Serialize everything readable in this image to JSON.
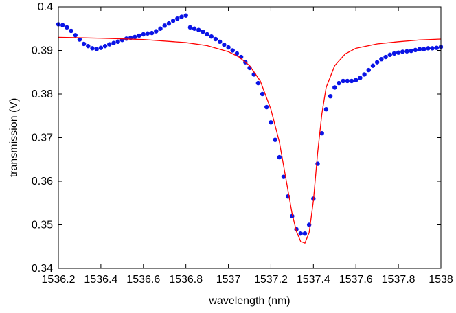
{
  "chart_data": {
    "type": "scatter",
    "title": "",
    "xlabel": "wavelength (nm)",
    "ylabel": "transmission (V)",
    "xlim": [
      1536.2,
      1538
    ],
    "ylim": [
      0.34,
      0.4
    ],
    "xticks": [
      1536.2,
      1536.4,
      1536.6,
      1536.8,
      1537,
      1537.2,
      1537.4,
      1537.6,
      1537.8,
      1538
    ],
    "xtick_labels": [
      "1536.2",
      "1536.4",
      "1536.6",
      "1536.8",
      "1537",
      "1537.2",
      "1537.4",
      "1537.6",
      "1537.8",
      "1538"
    ],
    "yticks": [
      0.34,
      0.35,
      0.36,
      0.37,
      0.38,
      0.39,
      0.4
    ],
    "ytick_labels": [
      "0.34",
      "0.35",
      "0.36",
      "0.37",
      "0.38",
      "0.39",
      "0.4"
    ],
    "grid": false,
    "colors": {
      "data": "#0a14e6",
      "fit": "#ff0000"
    },
    "series": [
      {
        "kind": "scatter",
        "points": [
          [
            1536.2,
            0.396
          ],
          [
            1536.22,
            0.3958
          ],
          [
            1536.24,
            0.3953
          ],
          [
            1536.26,
            0.3945
          ],
          [
            1536.28,
            0.3935
          ],
          [
            1536.3,
            0.3925
          ],
          [
            1536.32,
            0.3915
          ],
          [
            1536.34,
            0.391
          ],
          [
            1536.36,
            0.3905
          ],
          [
            1536.38,
            0.3903
          ],
          [
            1536.4,
            0.3906
          ],
          [
            1536.42,
            0.391
          ],
          [
            1536.44,
            0.3914
          ],
          [
            1536.46,
            0.3917
          ],
          [
            1536.48,
            0.392
          ],
          [
            1536.5,
            0.3924
          ],
          [
            1536.52,
            0.3927
          ],
          [
            1536.54,
            0.3929
          ],
          [
            1536.56,
            0.3931
          ],
          [
            1536.58,
            0.3934
          ],
          [
            1536.6,
            0.3937
          ],
          [
            1536.62,
            0.3939
          ],
          [
            1536.64,
            0.394
          ],
          [
            1536.66,
            0.3944
          ],
          [
            1536.68,
            0.395
          ],
          [
            1536.7,
            0.3957
          ],
          [
            1536.72,
            0.3962
          ],
          [
            1536.74,
            0.3968
          ],
          [
            1536.76,
            0.3973
          ],
          [
            1536.78,
            0.3977
          ],
          [
            1536.8,
            0.398
          ],
          [
            1536.82,
            0.3953
          ],
          [
            1536.84,
            0.395
          ],
          [
            1536.86,
            0.3947
          ],
          [
            1536.88,
            0.3943
          ],
          [
            1536.9,
            0.3937
          ],
          [
            1536.92,
            0.3932
          ],
          [
            1536.94,
            0.3926
          ],
          [
            1536.96,
            0.392
          ],
          [
            1536.98,
            0.3913
          ],
          [
            1537,
            0.3907
          ],
          [
            1537.02,
            0.39
          ],
          [
            1537.04,
            0.3893
          ],
          [
            1537.06,
            0.3885
          ],
          [
            1537.08,
            0.3873
          ],
          [
            1537.1,
            0.386
          ],
          [
            1537.12,
            0.3845
          ],
          [
            1537.14,
            0.3825
          ],
          [
            1537.16,
            0.38
          ],
          [
            1537.18,
            0.377
          ],
          [
            1537.2,
            0.3735
          ],
          [
            1537.22,
            0.3695
          ],
          [
            1537.24,
            0.3655
          ],
          [
            1537.26,
            0.361
          ],
          [
            1537.28,
            0.3565
          ],
          [
            1537.3,
            0.352
          ],
          [
            1537.32,
            0.349
          ],
          [
            1537.34,
            0.348
          ],
          [
            1537.36,
            0.348
          ],
          [
            1537.38,
            0.35
          ],
          [
            1537.4,
            0.356
          ],
          [
            1537.42,
            0.364
          ],
          [
            1537.44,
            0.371
          ],
          [
            1537.46,
            0.3765
          ],
          [
            1537.48,
            0.3795
          ],
          [
            1537.5,
            0.3815
          ],
          [
            1537.52,
            0.3825
          ],
          [
            1537.54,
            0.383
          ],
          [
            1537.56,
            0.383
          ],
          [
            1537.58,
            0.383
          ],
          [
            1537.6,
            0.3832
          ],
          [
            1537.62,
            0.3837
          ],
          [
            1537.64,
            0.3845
          ],
          [
            1537.66,
            0.3855
          ],
          [
            1537.68,
            0.3865
          ],
          [
            1537.7,
            0.3873
          ],
          [
            1537.72,
            0.388
          ],
          [
            1537.74,
            0.3885
          ],
          [
            1537.76,
            0.389
          ],
          [
            1537.78,
            0.3893
          ],
          [
            1537.8,
            0.3895
          ],
          [
            1537.82,
            0.3897
          ],
          [
            1537.84,
            0.3898
          ],
          [
            1537.86,
            0.3899
          ],
          [
            1537.88,
            0.3901
          ],
          [
            1537.9,
            0.3903
          ],
          [
            1537.92,
            0.3903
          ],
          [
            1537.94,
            0.3905
          ],
          [
            1537.96,
            0.3905
          ],
          [
            1537.98,
            0.3906
          ],
          [
            1538,
            0.3908
          ]
        ]
      },
      {
        "kind": "line",
        "points": [
          [
            1536.2,
            0.393
          ],
          [
            1536.4,
            0.3928
          ],
          [
            1536.6,
            0.3925
          ],
          [
            1536.8,
            0.3918
          ],
          [
            1536.9,
            0.3911
          ],
          [
            1537,
            0.3897
          ],
          [
            1537.05,
            0.3885
          ],
          [
            1537.1,
            0.3865
          ],
          [
            1537.15,
            0.383
          ],
          [
            1537.2,
            0.3765
          ],
          [
            1537.24,
            0.369
          ],
          [
            1537.28,
            0.358
          ],
          [
            1537.3,
            0.3525
          ],
          [
            1537.32,
            0.3485
          ],
          [
            1537.34,
            0.3462
          ],
          [
            1537.36,
            0.3458
          ],
          [
            1537.38,
            0.3482
          ],
          [
            1537.4,
            0.3555
          ],
          [
            1537.42,
            0.3665
          ],
          [
            1537.44,
            0.3755
          ],
          [
            1537.46,
            0.3815
          ],
          [
            1537.5,
            0.3865
          ],
          [
            1537.55,
            0.3892
          ],
          [
            1537.6,
            0.3905
          ],
          [
            1537.7,
            0.3915
          ],
          [
            1537.8,
            0.392
          ],
          [
            1537.9,
            0.3924
          ],
          [
            1538,
            0.3926
          ]
        ]
      }
    ]
  }
}
